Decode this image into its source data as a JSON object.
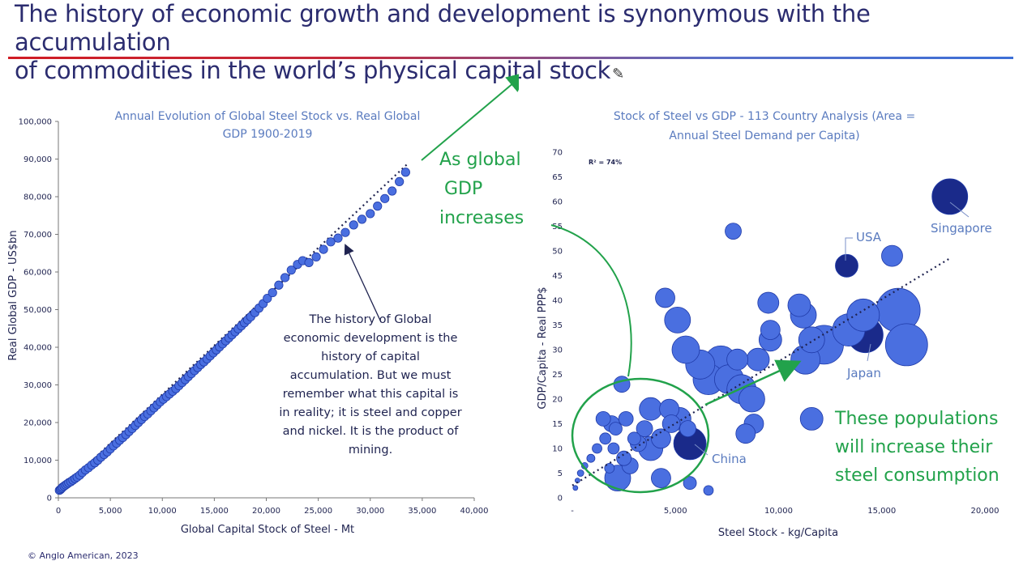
{
  "headline": {
    "line1": "The history of economic growth and development is synonymous with the accumulation",
    "line2": "of commodities in the world’s physical capital stock"
  },
  "colors": {
    "headline": "#2b2c6f",
    "rule_start": "#d01c24",
    "rule_end": "#3d6fd6",
    "dot_fill": "#4a6fe0",
    "dot_stroke": "#1f3aa8",
    "dark_dot": "#1a2a8a",
    "green": "#22a24b",
    "title_blue": "#5a7bbf"
  },
  "annotations": {
    "growth_line1": "As global",
    "growth_line2": "GDP",
    "growth_line3": "increases",
    "populations_line1": "These populations",
    "populations_line2": "will increase their",
    "populations_line3": "steel consumption",
    "note_lines": [
      "The history of Global",
      "economic development is the",
      "history of capital",
      "accumulation. But we must",
      "remember what this capital is",
      "in reality; it is steel and copper",
      "and nickel. It is the product of",
      "mining."
    ]
  },
  "chart_data": [
    {
      "type": "scatter",
      "title_line1": "Annual Evolution of Global Steel Stock vs. Real Global",
      "title_line2": "GDP 1900-2019",
      "xlabel": "Global Capital Stock of Steel - Mt",
      "ylabel": "Real Global GDP - US$bn",
      "xlim": [
        0,
        40000
      ],
      "ylim": [
        0,
        100000
      ],
      "xticks": [
        "0",
        "5,000",
        "10,000",
        "15,000",
        "20,000",
        "25,000",
        "30,000",
        "35,000",
        "40,000"
      ],
      "yticks": [
        "0",
        "10,000",
        "20,000",
        "30,000",
        "40,000",
        "50,000",
        "60,000",
        "70,000",
        "80,000",
        "90,000",
        "100,000"
      ],
      "trendline": [
        [
          0,
          1500
        ],
        [
          33500,
          88500
        ]
      ],
      "points": [
        [
          100,
          2000
        ],
        [
          200,
          2200
        ],
        [
          300,
          2500
        ],
        [
          400,
          2800
        ],
        [
          550,
          3100
        ],
        [
          700,
          3400
        ],
        [
          850,
          3700
        ],
        [
          1000,
          4000
        ],
        [
          1200,
          4300
        ],
        [
          1400,
          4700
        ],
        [
          1600,
          5100
        ],
        [
          1800,
          5500
        ],
        [
          2050,
          6000
        ],
        [
          2300,
          6700
        ],
        [
          2600,
          7400
        ],
        [
          2900,
          8000
        ],
        [
          3200,
          8700
        ],
        [
          3500,
          9300
        ],
        [
          3800,
          10000
        ],
        [
          4100,
          10800
        ],
        [
          4400,
          11500
        ],
        [
          4700,
          12200
        ],
        [
          5000,
          13000
        ],
        [
          5300,
          13800
        ],
        [
          5600,
          14500
        ],
        [
          5900,
          15300
        ],
        [
          6200,
          16000
        ],
        [
          6500,
          16800
        ],
        [
          6800,
          17600
        ],
        [
          7100,
          18400
        ],
        [
          7400,
          19200
        ],
        [
          7700,
          20000
        ],
        [
          8000,
          20800
        ],
        [
          8300,
          21600
        ],
        [
          8600,
          22300
        ],
        [
          8900,
          23100
        ],
        [
          9200,
          23900
        ],
        [
          9500,
          24700
        ],
        [
          9800,
          25500
        ],
        [
          10100,
          26200
        ],
        [
          10400,
          26900
        ],
        [
          10700,
          27600
        ],
        [
          11000,
          28300
        ],
        [
          11300,
          29000
        ],
        [
          11600,
          29800
        ],
        [
          11900,
          30600
        ],
        [
          12200,
          31400
        ],
        [
          12500,
          32200
        ],
        [
          12800,
          33000
        ],
        [
          13100,
          33800
        ],
        [
          13400,
          34600
        ],
        [
          13700,
          35400
        ],
        [
          14000,
          36100
        ],
        [
          14300,
          36900
        ],
        [
          14600,
          37700
        ],
        [
          14900,
          38500
        ],
        [
          15200,
          39300
        ],
        [
          15500,
          40100
        ],
        [
          15800,
          40900
        ],
        [
          16100,
          41700
        ],
        [
          16400,
          42500
        ],
        [
          16700,
          43300
        ],
        [
          17000,
          44100
        ],
        [
          17300,
          44900
        ],
        [
          17600,
          45700
        ],
        [
          17900,
          46500
        ],
        [
          18200,
          47300
        ],
        [
          18500,
          48100
        ],
        [
          18900,
          49200
        ],
        [
          19300,
          50400
        ],
        [
          19700,
          51600
        ],
        [
          20100,
          53000
        ],
        [
          20600,
          54500
        ],
        [
          21200,
          56500
        ],
        [
          21800,
          58500
        ],
        [
          22400,
          60500
        ],
        [
          23000,
          62000
        ],
        [
          23500,
          63000
        ],
        [
          24100,
          62500
        ],
        [
          24800,
          64000
        ],
        [
          25500,
          66000
        ],
        [
          26200,
          68000
        ],
        [
          26900,
          69000
        ],
        [
          27600,
          70500
        ],
        [
          28400,
          72500
        ],
        [
          29200,
          74000
        ],
        [
          30000,
          75500
        ],
        [
          30700,
          77500
        ],
        [
          31400,
          79500
        ],
        [
          32100,
          81500
        ],
        [
          32800,
          84000
        ],
        [
          33400,
          86500
        ]
      ]
    },
    {
      "type": "scatter",
      "title_line1": "Stock of Steel vs GDP - 113 Country Analysis (Area =",
      "title_line2": "Annual Steel Demand per Capita)",
      "xlabel": "Steel Stock - kg/Capita",
      "ylabel": "GDP/Capita - Real PPP$",
      "xlim": [
        0,
        20000
      ],
      "ylim": [
        0,
        70
      ],
      "xticks": [
        "-",
        "5,000",
        "10,000",
        "15,000",
        "20,000"
      ],
      "yticks": [
        "0",
        "5",
        "10",
        "15",
        "20",
        "25",
        "30",
        "35",
        "40",
        "45",
        "50",
        "55",
        "60",
        "65",
        "70"
      ],
      "r2_label": "R² = 74%",
      "trendline": [
        [
          0,
          2.5
        ],
        [
          18300,
          48.5
        ]
      ],
      "labels": {
        "usa": "USA",
        "singapore": "Singapore",
        "japan": "Japan",
        "china": "China"
      },
      "points": [
        [
          150,
          2,
          3
        ],
        [
          250,
          3.5,
          3
        ],
        [
          400,
          5,
          4
        ],
        [
          600,
          6.5,
          4
        ],
        [
          900,
          8,
          5
        ],
        [
          1200,
          10,
          6
        ],
        [
          1600,
          12,
          7
        ],
        [
          2100,
          14,
          8
        ],
        [
          1800,
          6,
          6
        ],
        [
          2500,
          8,
          9
        ],
        [
          2000,
          10,
          7
        ],
        [
          3000,
          12,
          8
        ],
        [
          2600,
          16,
          9
        ],
        [
          3800,
          18,
          14
        ],
        [
          3500,
          14,
          10
        ],
        [
          3800,
          10,
          15
        ],
        [
          4300,
          12,
          12
        ],
        [
          4800,
          15,
          11
        ],
        [
          4700,
          18,
          12
        ],
        [
          5200,
          16,
          14
        ],
        [
          5600,
          14,
          10
        ],
        [
          1900,
          15,
          10
        ],
        [
          1500,
          16,
          9
        ],
        [
          2400,
          23,
          10
        ],
        [
          3200,
          11,
          10
        ],
        [
          2800,
          6.5,
          10
        ],
        [
          2200,
          4,
          16
        ],
        [
          4300,
          4,
          12
        ],
        [
          5700,
          3,
          8
        ],
        [
          6600,
          1.5,
          6
        ],
        [
          5700,
          11,
          20
        ],
        [
          4500,
          40.5,
          12
        ],
        [
          5100,
          36,
          16
        ],
        [
          5500,
          30,
          17
        ],
        [
          6200,
          27,
          18
        ],
        [
          6600,
          24,
          19
        ],
        [
          7200,
          27.5,
          20
        ],
        [
          7600,
          24,
          18
        ],
        [
          8000,
          28,
          13
        ],
        [
          8200,
          22,
          18
        ],
        [
          8700,
          20,
          16
        ],
        [
          9000,
          28,
          14
        ],
        [
          8800,
          15,
          12
        ],
        [
          8400,
          13,
          12
        ],
        [
          7800,
          54,
          10
        ],
        [
          9500,
          39.5,
          13
        ],
        [
          9600,
          32,
          14
        ],
        [
          9600,
          34,
          12
        ],
        [
          11000,
          39,
          14
        ],
        [
          11200,
          37,
          16
        ],
        [
          11600,
          32,
          16
        ],
        [
          11300,
          28,
          18
        ],
        [
          12200,
          31,
          24
        ],
        [
          13400,
          34,
          20
        ],
        [
          14100,
          37,
          20
        ],
        [
          15800,
          38,
          27
        ],
        [
          16200,
          31,
          26
        ],
        [
          13300,
          47,
          14
        ],
        [
          15500,
          49,
          13
        ],
        [
          18300,
          61,
          22
        ],
        [
          11600,
          16,
          14
        ],
        [
          14200,
          33,
          22
        ]
      ]
    }
  ],
  "copyright": "© Anglo American, 2023"
}
